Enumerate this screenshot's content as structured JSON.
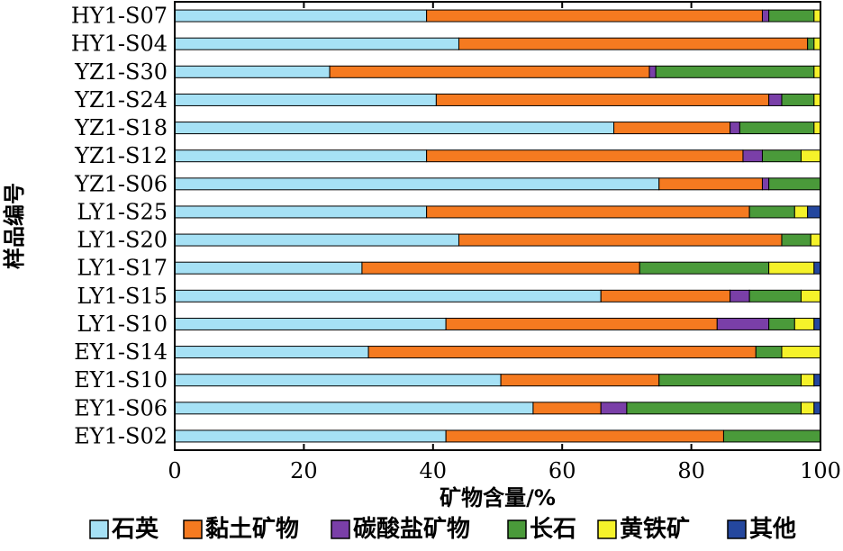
{
  "chart_data": {
    "type": "bar",
    "orientation": "horizontal",
    "stacked": true,
    "xlabel": "矿物含量/%",
    "ylabel": "样品编号",
    "xlim": [
      0,
      100
    ],
    "xticks": [
      0,
      20,
      40,
      60,
      80,
      100
    ],
    "grid": false,
    "legend_position": "bottom",
    "categories": [
      "HY1-S07",
      "HY1-S04",
      "YZ1-S30",
      "YZ1-S24",
      "YZ1-S18",
      "YZ1-S12",
      "YZ1-S06",
      "LY1-S25",
      "LY1-S20",
      "LY1-S17",
      "LY1-S15",
      "LY1-S10",
      "EY1-S14",
      "EY1-S10",
      "EY1-S06",
      "EY1-S02"
    ],
    "series": [
      {
        "name": "石英",
        "color": "#a6e1f5",
        "values": [
          39,
          44,
          24,
          40.5,
          68,
          39,
          75,
          39,
          44,
          29,
          66,
          42,
          30,
          50.5,
          55.5,
          42
        ]
      },
      {
        "name": "黏土矿物",
        "color": "#f57a20",
        "values": [
          52,
          54,
          49.5,
          51.5,
          18,
          49,
          16,
          50,
          50,
          43,
          20,
          42,
          60,
          24.5,
          10.5,
          43
        ]
      },
      {
        "name": "碳酸盐矿物",
        "color": "#7a3fa8",
        "values": [
          1,
          0,
          1,
          2,
          1.5,
          3,
          1,
          0,
          0,
          0,
          3,
          8,
          0,
          0,
          4,
          0
        ]
      },
      {
        "name": "长石",
        "color": "#4a9a3a",
        "values": [
          7,
          1,
          24.5,
          5,
          11.5,
          6,
          8,
          7,
          4.5,
          20,
          8,
          4,
          4,
          22,
          27,
          15
        ]
      },
      {
        "name": "黄铁矿",
        "color": "#f5f22a",
        "values": [
          1,
          1,
          1,
          1,
          1,
          3,
          0,
          2,
          1.5,
          7,
          3,
          3,
          6,
          2,
          2,
          0
        ]
      },
      {
        "name": "其他",
        "color": "#24479e",
        "values": [
          0,
          0,
          0,
          0,
          0,
          0,
          0,
          2,
          0,
          1,
          0,
          1,
          0,
          1,
          1,
          0
        ]
      }
    ]
  }
}
